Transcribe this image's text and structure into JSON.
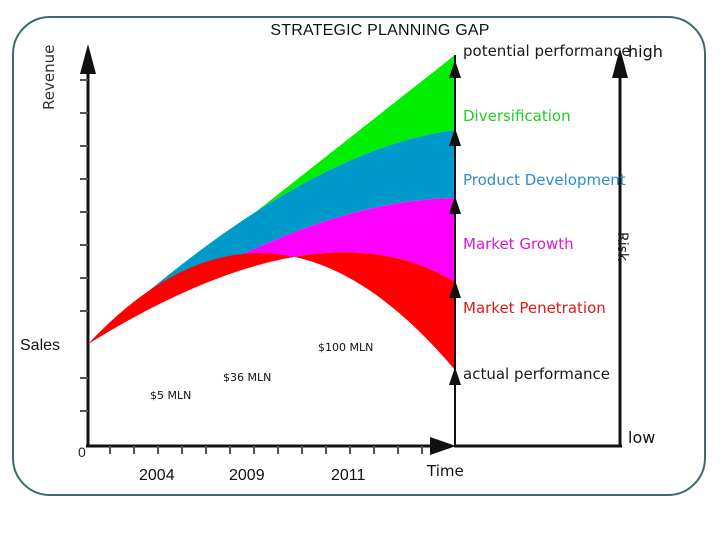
{
  "title": "STRATEGIC PLANNING GAP",
  "y_axis_label": "Revenue",
  "x_axis_label": "Time",
  "origin_label": "0",
  "left_label": "Sales",
  "risk_axis": {
    "label": "Risk",
    "high": "high",
    "low": "low"
  },
  "years": [
    "2004",
    "2009",
    "2011"
  ],
  "milestones": [
    "$5 MLN",
    "$36 MLN",
    "$100 MLN"
  ],
  "levels": [
    {
      "label": "potential performance",
      "color": "#1a1a1a"
    },
    {
      "label": "Diversification",
      "color": "#22cc22"
    },
    {
      "label": "Product Development",
      "color": "#2d8fc8"
    },
    {
      "label": "Market Growth",
      "color": "#d918d9"
    },
    {
      "label": "Market Penetration",
      "color": "#e01818"
    },
    {
      "label": "actual performance",
      "color": "#1a1a1a"
    }
  ],
  "band_colors": {
    "diversification": "#00ee00",
    "product_development": "#0099cc",
    "market_growth": "#ff00ff",
    "market_penetration": "#ff0000"
  }
}
